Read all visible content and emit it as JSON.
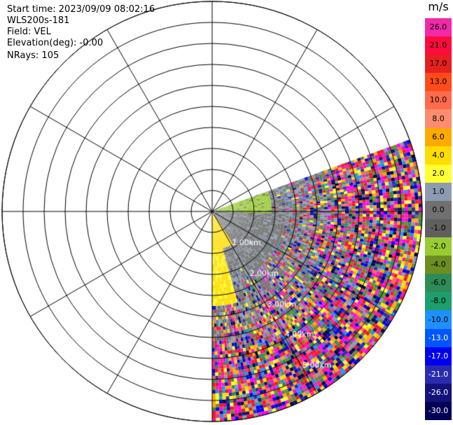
{
  "header": {
    "start_time": "Start time: 2023/09/09 08:02:16",
    "site": "WLS200s-181",
    "field": "Field: VEL",
    "elevation": "Elevation(deg): -0.00",
    "nrays": "NRays: 105"
  },
  "ppi": {
    "range_labels": [
      "1.00km",
      "2.00km",
      "3.00km",
      "4.00km",
      "5.00km"
    ],
    "ring_count": 10,
    "spoke_angles_deg": [
      0,
      30,
      60,
      90,
      120,
      150,
      180,
      210,
      240,
      270,
      300,
      330
    ],
    "sector_start_deg": 70,
    "sector_end_deg": 180
  },
  "colorbar": {
    "unit": "m/s",
    "labels": [
      "26.0",
      "21.0",
      "17.0",
      "13.0",
      "10.0",
      "8.0",
      "6.0",
      "4.0",
      "2.0",
      "1.0",
      "0.0",
      "-1.0",
      "-2.0",
      "-4.0",
      "-6.0",
      "-8.0",
      "-10.0",
      "-13.0",
      "-17.0",
      "-21.0",
      "-26.0",
      "-30.0"
    ],
    "colors": [
      "#f02aa8",
      "#ff0a3c",
      "#e62020",
      "#ff4a1a",
      "#ff6a4a",
      "#ff8c6e",
      "#ffaa00",
      "#ffdd00",
      "#ffff33",
      "#8c9bb0",
      "#707070",
      "#5f5f5f",
      "#99cc33",
      "#6b8e23",
      "#2e8b57",
      "#1e9e6a",
      "#1e90ff",
      "#0055ff",
      "#0000ee",
      "#2b2bb0",
      "#12127a",
      "#000055"
    ]
  }
}
